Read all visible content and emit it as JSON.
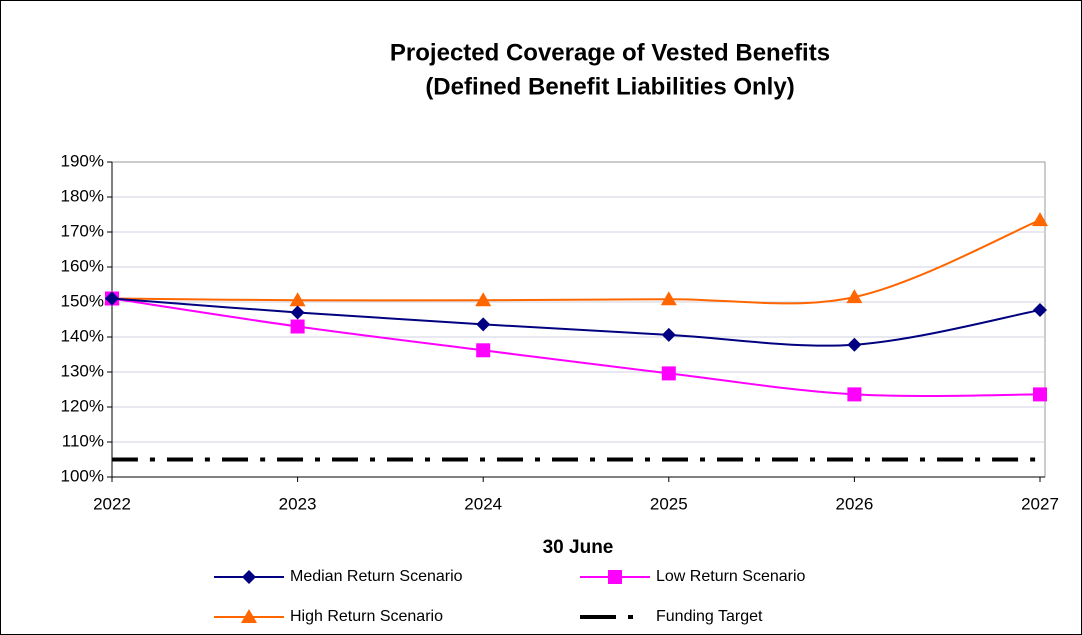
{
  "chart_data": {
    "type": "line",
    "title": "Projected Coverage of Vested Benefits",
    "subtitle": "(Defined Benefit Liabilities Only)",
    "x_label": "30 June",
    "x": [
      2022,
      2023,
      2024,
      2025,
      2026,
      2027
    ],
    "xlim": [
      2022,
      2027
    ],
    "xticks": [
      2022,
      2023,
      2024,
      2025,
      2026,
      2027
    ],
    "ylim": [
      100,
      190
    ],
    "yticks": [
      {
        "value": 100,
        "label": "100%"
      },
      {
        "value": 110,
        "label": "110%"
      },
      {
        "value": 120,
        "label": "120%"
      },
      {
        "value": 130,
        "label": "130%"
      },
      {
        "value": 140,
        "label": "140%"
      },
      {
        "value": 150,
        "label": "150%"
      },
      {
        "value": 160,
        "label": "160%"
      },
      {
        "value": 170,
        "label": "170%"
      },
      {
        "value": 180,
        "label": "180%"
      },
      {
        "value": 190,
        "label": "190%"
      }
    ],
    "grid": true,
    "smooth": true,
    "series": [
      {
        "name": "Median Return Scenario",
        "color": "#000080",
        "marker": "diamond",
        "values": [
          151,
          147,
          143.6,
          140.6,
          137.8,
          147.7
        ]
      },
      {
        "name": "Low Return Scenario",
        "color": "#FF00FF",
        "marker": "square",
        "values": [
          151,
          143,
          136.2,
          129.6,
          123.6,
          123.6
        ]
      },
      {
        "name": "High Return Scenario",
        "color": "#FF6600",
        "marker": "triangle",
        "values": [
          151,
          150.5,
          150.5,
          150.8,
          151.4,
          173.4
        ]
      },
      {
        "name": "Funding Target",
        "color": "#000000",
        "style": "dash-dot",
        "values": [
          105,
          105,
          105,
          105,
          105,
          105
        ]
      }
    ]
  }
}
